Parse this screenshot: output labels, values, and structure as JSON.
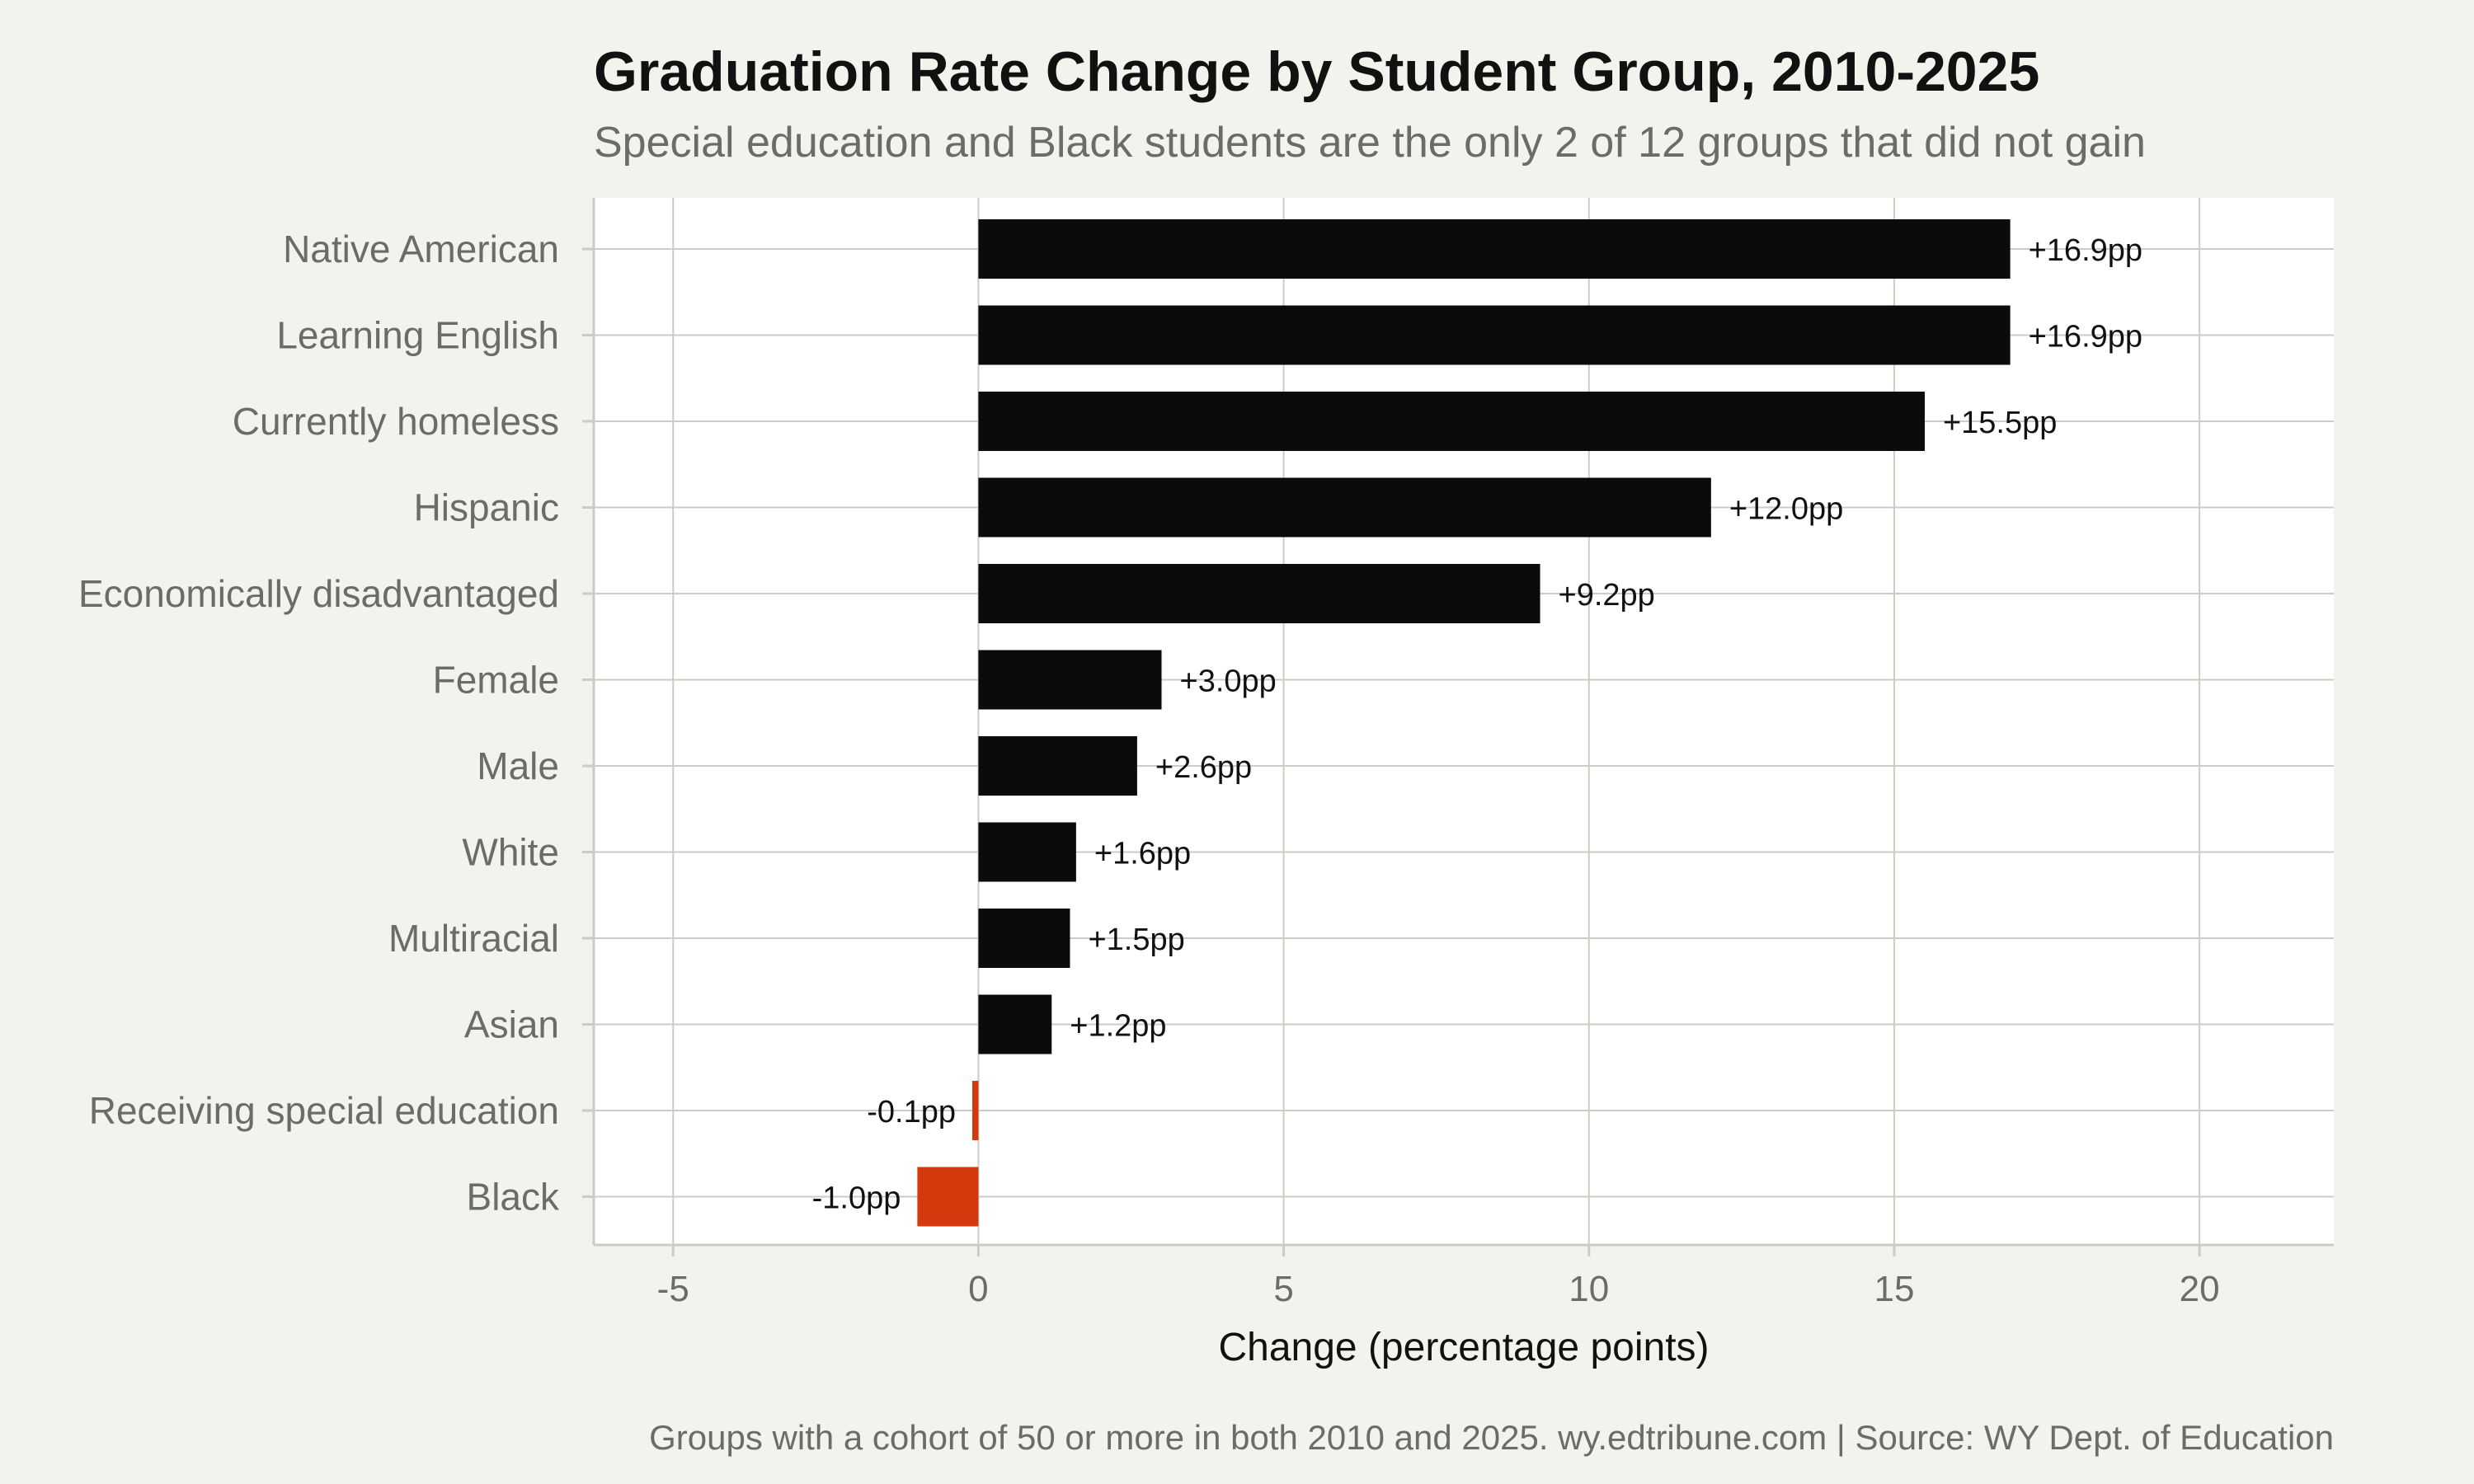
{
  "chart_data": {
    "type": "bar",
    "orientation": "horizontal",
    "title": "Graduation Rate Change by Student Group, 2010-2025",
    "subtitle": "Special education and Black students are the only 2 of 12 groups that did not gain",
    "xlabel": "Change (percentage points)",
    "ylabel": "",
    "xlim": [
      -6.3,
      22.2
    ],
    "xticks": [
      -5,
      0,
      5,
      10,
      15,
      20
    ],
    "xtick_labels": [
      "-5",
      "0",
      "5",
      "10",
      "15",
      "20"
    ],
    "grid": true,
    "categories": [
      "Native American",
      "Learning English",
      "Currently homeless",
      "Hispanic",
      "Economically disadvantaged",
      "Female",
      "Male",
      "White",
      "Multiracial",
      "Asian",
      "Receiving special education",
      "Black"
    ],
    "values": [
      16.9,
      16.9,
      15.5,
      12.0,
      9.2,
      3.0,
      2.6,
      1.6,
      1.5,
      1.2,
      -0.1,
      -1.0
    ],
    "data_labels": [
      "+16.9pp",
      "+16.9pp",
      "+15.5pp",
      "+12.0pp",
      "+9.2pp",
      "+3.0pp",
      "+2.6pp",
      "+1.6pp",
      "+1.5pp",
      "+1.2pp",
      "-0.1pp",
      "-1.0pp"
    ],
    "colors": {
      "positive": "#0b0b0b",
      "negative": "#d4380d",
      "panel": "#ffffff",
      "background": "#f4f2ed",
      "grid": "#cccbc4"
    },
    "caption": "Groups with a cohort of 50 or more in both 2010 and 2025. wy.edtribune.com | Source: WY Dept. of Education"
  }
}
